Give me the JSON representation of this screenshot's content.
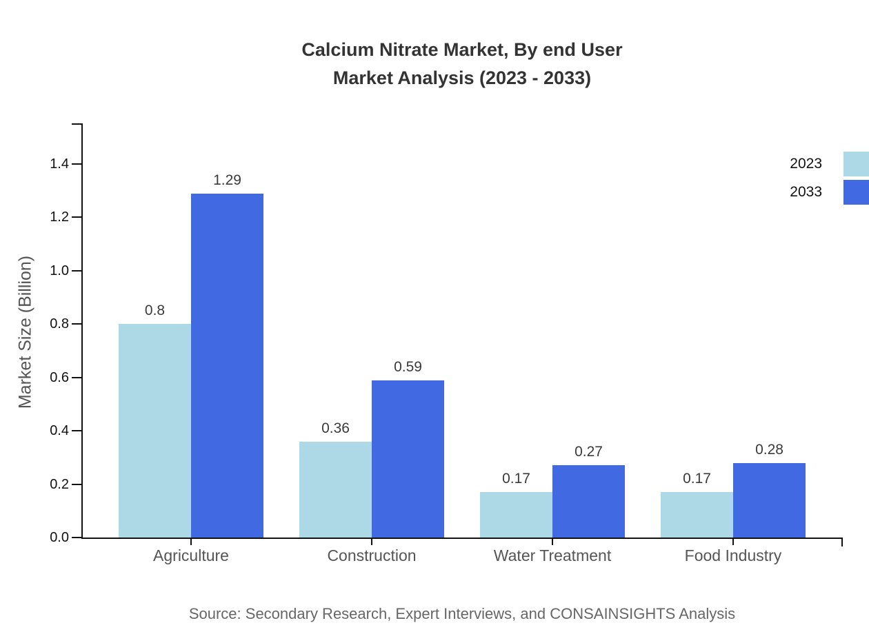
{
  "title_lines": [
    "Calcium Nitrate Market, By end User",
    "Market Analysis (2023 - 2033)"
  ],
  "chart_data": {
    "type": "bar",
    "title": "Calcium Nitrate Market, By end User Market Analysis (2023 - 2033)",
    "categories": [
      "Agriculture",
      "Construction",
      "Water Treatment",
      "Food Industry"
    ],
    "series": [
      {
        "name": "2023",
        "color": "#ADD8E6",
        "values": [
          0.8,
          0.36,
          0.17,
          0.17
        ]
      },
      {
        "name": "2033",
        "color": "#4169E1",
        "values": [
          1.29,
          0.59,
          0.27,
          0.28
        ]
      }
    ],
    "xlabel": "",
    "ylabel": "Market Size (Billion)",
    "ylim": [
      0,
      1.55
    ],
    "yticks": [
      0.0,
      0.2,
      0.4,
      0.6,
      0.8,
      1.0,
      1.2,
      1.4
    ],
    "grid": false,
    "legend_position": "top-right",
    "bar_value_labels": true
  },
  "source_note": "Source: Secondary Research, Expert Interviews, and CONSAINSIGHTS Analysis",
  "colors": {
    "series_2023": "#ADD8E6",
    "series_2033": "#4169E1",
    "axis": "#111111",
    "title_text": "#333333",
    "axis_label_text": "#555555",
    "tick_label_text": "#111111",
    "value_label_text": "#3a3a3a",
    "source_text": "#666666",
    "background": "#ffffff"
  }
}
